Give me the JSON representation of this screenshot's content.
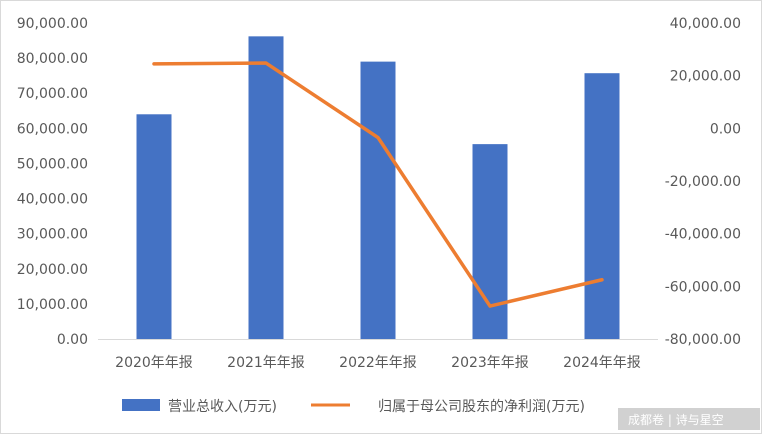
{
  "chart_data": {
    "type": "bar",
    "categories": [
      "2020年年报",
      "2021年年报",
      "2022年年报",
      "2023年年报",
      "2024年年报"
    ],
    "series": [
      {
        "name": "营业总收入(万元)",
        "type": "bar",
        "axis": "left",
        "color": "#4472C4",
        "values": [
          64000,
          86200,
          79000,
          55500,
          75700
        ]
      },
      {
        "name": "归属于母公司股东的净利润(万元)",
        "type": "line",
        "axis": "right",
        "color": "#ED7D31",
        "values": [
          24500,
          24800,
          -3500,
          -67500,
          -57500
        ]
      }
    ],
    "ylim_left": [
      0,
      90000
    ],
    "ylim_right": [
      -80000,
      40000
    ],
    "yticks_left": [
      "0.00",
      "10,000.00",
      "20,000.00",
      "30,000.00",
      "40,000.00",
      "50,000.00",
      "60,000.00",
      "70,000.00",
      "80,000.00",
      "90,000.00"
    ],
    "yticks_right": [
      "-80,000.00",
      "-60,000.00",
      "-40,000.00",
      "-20,000.00",
      "0.00",
      "20,000.00",
      "40,000.00"
    ],
    "grid": false,
    "legend_position": "bottom"
  },
  "watermark": "成都卷 | 诗与星空"
}
